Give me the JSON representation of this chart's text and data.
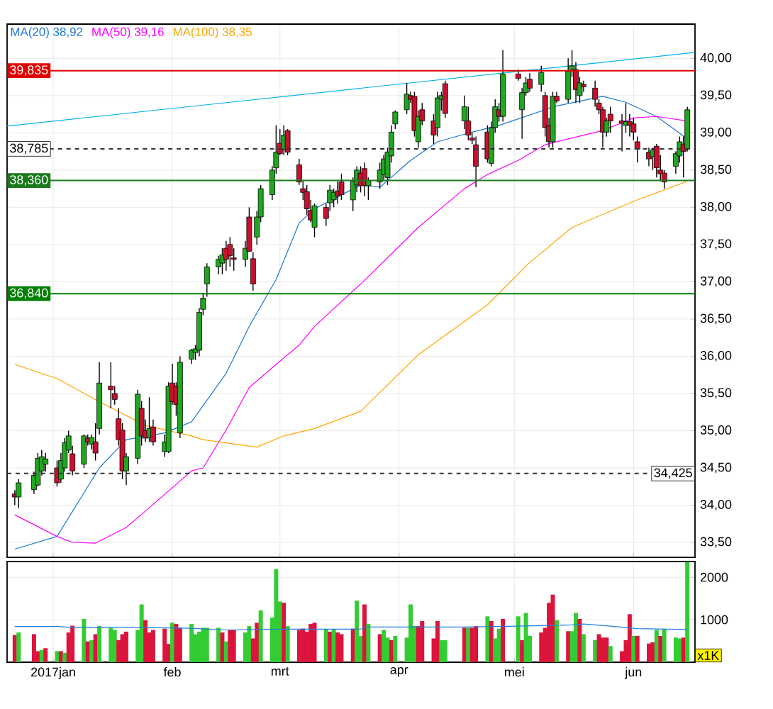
{
  "chart_data": [
    {
      "type": "candlestick",
      "x": [
        "2016-12-22",
        "2016-12-23",
        "2016-12-27",
        "2016-12-28",
        "2016-12-29",
        "2016-12-30",
        "2017-01-02",
        "2017-01-03",
        "2017-01-04",
        "2017-01-05",
        "2017-01-06",
        "2017-01-09",
        "2017-01-10",
        "2017-01-11",
        "2017-01-12",
        "2017-01-13",
        "2017-01-16",
        "2017-01-17",
        "2017-01-18",
        "2017-01-19",
        "2017-01-20",
        "2017-01-23",
        "2017-01-24",
        "2017-01-25",
        "2017-01-26",
        "2017-01-27",
        "2017-01-30",
        "2017-01-31",
        "2017-02-01",
        "2017-02-02",
        "2017-02-03",
        "2017-02-06",
        "2017-02-07",
        "2017-02-08",
        "2017-02-09",
        "2017-02-10",
        "2017-02-13",
        "2017-02-14",
        "2017-02-15",
        "2017-02-16",
        "2017-02-17",
        "2017-02-20",
        "2017-02-21",
        "2017-02-22",
        "2017-02-23",
        "2017-02-24",
        "2017-02-27",
        "2017-02-28",
        "2017-03-01",
        "2017-03-02",
        "2017-03-03",
        "2017-03-06",
        "2017-03-07",
        "2017-03-08",
        "2017-03-09",
        "2017-03-10",
        "2017-03-13",
        "2017-03-14",
        "2017-03-15",
        "2017-03-16",
        "2017-03-17",
        "2017-03-20",
        "2017-03-21",
        "2017-03-22",
        "2017-03-23",
        "2017-03-24",
        "2017-03-27",
        "2017-03-28",
        "2017-03-29",
        "2017-03-30",
        "2017-03-31",
        "2017-04-03",
        "2017-04-04",
        "2017-04-05",
        "2017-04-06",
        "2017-04-07",
        "2017-04-10",
        "2017-04-11",
        "2017-04-12",
        "2017-04-13",
        "2017-04-18",
        "2017-04-19",
        "2017-04-20",
        "2017-04-21",
        "2017-04-24",
        "2017-04-25",
        "2017-04-26",
        "2017-04-27",
        "2017-04-28",
        "2017-05-02",
        "2017-05-03",
        "2017-05-04",
        "2017-05-05",
        "2017-05-08",
        "2017-05-09",
        "2017-05-10",
        "2017-05-11",
        "2017-05-12",
        "2017-05-15",
        "2017-05-16",
        "2017-05-17",
        "2017-05-18",
        "2017-05-19",
        "2017-05-22",
        "2017-05-23",
        "2017-05-24",
        "2017-05-25",
        "2017-05-26",
        "2017-05-29",
        "2017-05-30",
        "2017-05-31",
        "2017-06-01",
        "2017-06-02",
        "2017-06-05",
        "2017-06-06",
        "2017-06-07",
        "2017-06-08",
        "2017-06-09",
        "2017-06-12",
        "2017-06-13",
        "2017-06-14",
        "2017-06-15"
      ],
      "ohlc": [
        [
          34.15,
          34.2,
          34.0,
          34.11
        ],
        [
          34.11,
          34.35,
          33.96,
          34.3
        ],
        [
          34.21,
          34.45,
          34.15,
          34.4
        ],
        [
          34.27,
          34.7,
          34.25,
          34.63
        ],
        [
          34.46,
          34.74,
          34.4,
          34.65
        ],
        [
          34.55,
          34.7,
          34.45,
          34.62
        ],
        [
          34.5,
          34.6,
          34.25,
          34.3
        ],
        [
          34.35,
          34.7,
          34.3,
          34.6
        ],
        [
          34.5,
          34.9,
          34.45,
          34.84
        ],
        [
          34.74,
          35.0,
          34.7,
          34.93
        ],
        [
          34.69,
          34.8,
          34.4,
          34.46
        ],
        [
          34.55,
          34.95,
          34.5,
          34.93
        ],
        [
          34.9,
          34.95,
          34.8,
          34.85
        ],
        [
          34.82,
          34.95,
          34.75,
          34.91
        ],
        [
          34.85,
          35.1,
          34.6,
          34.7
        ],
        [
          35.03,
          35.92,
          34.95,
          35.64
        ],
        [
          35.6,
          35.92,
          35.3,
          35.55
        ],
        [
          35.5,
          35.6,
          35.35,
          35.42
        ],
        [
          35.16,
          35.3,
          34.8,
          34.88
        ],
        [
          35.01,
          35.1,
          34.35,
          34.46
        ],
        [
          34.46,
          34.7,
          34.27,
          34.65
        ],
        [
          34.63,
          35.55,
          34.55,
          35.49
        ],
        [
          35.3,
          35.4,
          34.8,
          34.93
        ],
        [
          35.0,
          35.15,
          34.85,
          34.9
        ],
        [
          34.91,
          35.45,
          34.85,
          35.03
        ],
        [
          35.05,
          35.15,
          34.8,
          34.85
        ],
        [
          34.72,
          34.95,
          34.65,
          34.85
        ],
        [
          34.72,
          35.65,
          34.7,
          35.6
        ],
        [
          35.64,
          35.9,
          35.35,
          35.39
        ],
        [
          35.6,
          35.65,
          35.2,
          35.35
        ],
        [
          34.97,
          36.0,
          34.9,
          35.92
        ],
        [
          35.96,
          36.1,
          35.9,
          36.08
        ],
        [
          36.05,
          36.15,
          35.95,
          36.1
        ],
        [
          36.08,
          36.65,
          36.0,
          36.59
        ],
        [
          36.63,
          36.85,
          36.55,
          36.78
        ],
        [
          36.97,
          37.25,
          36.8,
          37.2
        ],
        [
          37.2,
          37.35,
          37.1,
          37.3
        ],
        [
          37.25,
          37.45,
          37.1,
          37.36
        ],
        [
          37.45,
          37.55,
          37.15,
          37.3
        ],
        [
          37.5,
          37.6,
          37.2,
          37.35
        ],
        [
          37.32,
          37.45,
          37.15,
          37.3
        ],
        [
          37.3,
          37.55,
          37.2,
          37.45
        ],
        [
          37.87,
          38.0,
          37.4,
          37.41
        ],
        [
          37.31,
          37.4,
          36.88,
          36.97
        ],
        [
          37.6,
          37.95,
          37.5,
          37.87
        ],
        [
          37.87,
          38.3,
          37.8,
          38.25
        ],
        [
          38.17,
          38.55,
          38.1,
          38.5
        ],
        [
          38.53,
          39.1,
          38.45,
          38.74
        ],
        [
          38.86,
          39.05,
          38.7,
          38.72
        ],
        [
          38.78,
          39.1,
          38.7,
          38.97
        ],
        [
          39.03,
          39.05,
          38.7,
          38.74
        ],
        [
          38.57,
          38.65,
          38.3,
          38.34
        ],
        [
          38.25,
          38.35,
          38.1,
          38.2
        ],
        [
          38.21,
          38.3,
          37.9,
          37.98
        ],
        [
          37.96,
          38.1,
          37.8,
          37.83
        ],
        [
          37.73,
          38.05,
          37.6,
          38.02
        ],
        [
          38.0,
          38.05,
          37.75,
          37.85
        ],
        [
          38.06,
          38.3,
          37.95,
          38.23
        ],
        [
          38.1,
          38.25,
          38.0,
          38.2
        ],
        [
          38.22,
          38.35,
          38.05,
          38.15
        ],
        [
          38.34,
          38.45,
          38.1,
          38.17
        ],
        [
          38.1,
          38.4,
          37.95,
          38.35
        ],
        [
          38.3,
          38.55,
          38.2,
          38.5
        ],
        [
          38.46,
          38.55,
          38.2,
          38.29
        ],
        [
          38.52,
          38.6,
          38.15,
          38.29
        ],
        [
          38.29,
          38.4,
          38.1,
          38.36
        ],
        [
          38.34,
          38.6,
          38.25,
          38.5
        ],
        [
          38.44,
          38.7,
          38.35,
          38.65
        ],
        [
          38.4,
          38.8,
          38.3,
          38.74
        ],
        [
          38.69,
          39.1,
          38.6,
          39.01
        ],
        [
          39.12,
          39.3,
          39.05,
          39.28
        ],
        [
          39.31,
          39.67,
          39.25,
          39.52
        ],
        [
          39.5,
          39.55,
          39.4,
          39.45
        ],
        [
          39.49,
          39.55,
          38.95,
          39.03
        ],
        [
          38.88,
          39.3,
          38.8,
          39.22
        ],
        [
          39.31,
          39.4,
          39.1,
          39.16
        ],
        [
          39.16,
          39.25,
          38.85,
          38.97
        ],
        [
          39.07,
          39.55,
          38.95,
          39.47
        ],
        [
          39.45,
          39.55,
          39.3,
          39.5
        ],
        [
          39.66,
          39.7,
          39.2,
          39.26
        ],
        [
          39.16,
          39.5,
          39.05,
          39.35
        ],
        [
          39.16,
          39.35,
          38.9,
          38.97
        ],
        [
          38.93,
          39.0,
          38.85,
          38.9
        ],
        [
          38.84,
          38.95,
          38.27,
          38.55
        ],
        [
          39.01,
          39.1,
          38.6,
          38.65
        ],
        [
          38.59,
          39.15,
          38.55,
          39.07
        ],
        [
          39.07,
          39.45,
          39.0,
          39.35
        ],
        [
          39.31,
          39.4,
          39.15,
          39.22
        ],
        [
          39.22,
          40.11,
          39.15,
          39.79
        ],
        [
          39.79,
          39.85,
          39.7,
          39.73
        ],
        [
          39.31,
          39.6,
          38.92,
          39.54
        ],
        [
          39.54,
          39.75,
          39.5,
          39.67
        ],
        [
          39.72,
          39.8,
          39.55,
          39.6
        ],
        [
          39.65,
          39.9,
          39.55,
          39.81
        ],
        [
          39.5,
          39.55,
          38.95,
          39.07
        ],
        [
          39.1,
          39.2,
          38.8,
          38.88
        ],
        [
          38.88,
          39.55,
          38.8,
          39.49
        ],
        [
          39.49,
          39.55,
          39.4,
          39.43
        ],
        [
          39.45,
          40.0,
          39.4,
          39.83
        ],
        [
          39.85,
          40.11,
          39.75,
          39.9
        ],
        [
          39.85,
          39.95,
          39.4,
          39.58
        ],
        [
          39.5,
          39.75,
          39.4,
          39.67
        ],
        [
          39.65,
          39.7,
          39.55,
          39.62
        ],
        [
          39.6,
          39.7,
          39.35,
          39.45
        ],
        [
          39.4,
          39.45,
          39.25,
          39.31
        ],
        [
          39.31,
          39.35,
          38.8,
          39.01
        ],
        [
          39.01,
          39.2,
          38.95,
          39.16
        ],
        [
          39.25,
          39.35,
          39.0,
          39.16
        ],
        [
          39.16,
          39.25,
          38.75,
          39.13
        ],
        [
          39.1,
          39.4,
          39.0,
          39.15
        ],
        [
          39.15,
          39.25,
          38.95,
          39.1
        ],
        [
          39.12,
          39.2,
          38.9,
          39.01
        ],
        [
          38.88,
          38.95,
          38.6,
          38.78
        ],
        [
          38.74,
          38.8,
          38.55,
          38.65
        ],
        [
          38.68,
          38.8,
          38.5,
          38.77
        ],
        [
          38.82,
          38.85,
          38.4,
          38.53
        ],
        [
          38.5,
          38.7,
          38.35,
          38.45
        ],
        [
          38.46,
          38.5,
          38.25,
          38.34
        ],
        [
          38.55,
          38.75,
          38.45,
          38.72
        ],
        [
          38.69,
          38.95,
          38.6,
          38.88
        ],
        [
          38.85,
          38.95,
          38.4,
          38.75
        ],
        [
          38.78,
          39.35,
          38.75,
          39.31
        ]
      ],
      "colors": [
        "#c8102e",
        "#1fa81f",
        "#1fa81f",
        "#1fa81f",
        "#1fa81f",
        "#1fa81f",
        "#c8102e",
        "#1fa81f",
        "#1fa81f",
        "#1fa81f",
        "#c8102e",
        "#1fa81f",
        "#c8102e",
        "#1fa81f",
        "#c8102e",
        "#1fa81f",
        "#c8102e",
        "#c8102e",
        "#c8102e",
        "#c8102e",
        "#1fa81f",
        "#1fa81f",
        "#c8102e",
        "#c8102e",
        "#1fa81f",
        "#c8102e",
        "#1fa81f",
        "#1fa81f",
        "#c8102e",
        "#c8102e",
        "#1fa81f",
        "#1fa81f",
        "#1fa81f",
        "#1fa81f",
        "#1fa81f",
        "#1fa81f",
        "#1fa81f",
        "#1fa81f",
        "#c8102e",
        "#c8102e",
        "#c8102e",
        "#1fa81f",
        "#c8102e",
        "#c8102e",
        "#1fa81f",
        "#1fa81f",
        "#1fa81f",
        "#1fa81f",
        "#c8102e",
        "#1fa81f",
        "#c8102e",
        "#c8102e",
        "#c8102e",
        "#c8102e",
        "#c8102e",
        "#1fa81f",
        "#c8102e",
        "#1fa81f",
        "#1fa81f",
        "#c8102e",
        "#c8102e",
        "#1fa81f",
        "#1fa81f",
        "#c8102e",
        "#c8102e",
        "#1fa81f",
        "#1fa81f",
        "#1fa81f",
        "#1fa81f",
        "#1fa81f",
        "#1fa81f",
        "#1fa81f",
        "#c8102e",
        "#c8102e",
        "#1fa81f",
        "#c8102e",
        "#c8102e",
        "#1fa81f",
        "#1fa81f",
        "#c8102e",
        "#1fa81f",
        "#c8102e",
        "#c8102e",
        "#c8102e",
        "#c8102e",
        "#1fa81f",
        "#1fa81f",
        "#c8102e",
        "#1fa81f",
        "#c8102e",
        "#1fa81f",
        "#1fa81f",
        "#c8102e",
        "#1fa81f",
        "#c8102e",
        "#c8102e",
        "#1fa81f",
        "#c8102e",
        "#1fa81f",
        "#1fa81f",
        "#c8102e",
        "#1fa81f",
        "#c8102e",
        "#c8102e",
        "#c8102e",
        "#c8102e",
        "#1fa81f",
        "#c8102e",
        "#c8102e",
        "#1fa81f",
        "#c8102e",
        "#c8102e",
        "#c8102e",
        "#c8102e",
        "#1fa81f",
        "#c8102e",
        "#c8102e",
        "#c8102e",
        "#1fa81f",
        "#1fa81f",
        "#c8102e",
        "#1fa81f"
      ],
      "series": [
        {
          "name": "MA(20) 38,92",
          "type": "line",
          "color": "#1a78d4",
          "x": [
            "2016-12-22",
            "2017-01-02",
            "2017-01-13",
            "2017-01-20",
            "2017-01-30",
            "2017-02-06",
            "2017-02-15",
            "2017-02-21",
            "2017-02-28",
            "2017-03-06",
            "2017-03-10",
            "2017-03-22",
            "2017-03-27",
            "2017-04-04",
            "2017-04-11",
            "2017-04-20",
            "2017-04-27",
            "2017-05-09",
            "2017-05-11",
            "2017-05-24",
            "2017-05-30",
            "2017-06-07",
            "2017-06-15"
          ],
          "values": [
            33.41,
            33.58,
            34.5,
            34.88,
            34.97,
            35.12,
            35.77,
            36.4,
            37.03,
            37.79,
            37.98,
            38.3,
            38.27,
            38.63,
            38.88,
            39.01,
            39.1,
            39.31,
            39.35,
            39.49,
            39.41,
            39.22,
            38.92
          ]
        },
        {
          "name": "MA(50) 39,16",
          "type": "line",
          "color": "#ff00ff",
          "x": [
            "2016-12-22",
            "2017-01-02",
            "2017-01-06",
            "2017-01-12",
            "2017-01-20",
            "2017-01-25",
            "2017-02-06",
            "2017-02-09",
            "2017-02-15",
            "2017-02-21",
            "2017-02-28",
            "2017-03-06",
            "2017-03-10",
            "2017-03-22",
            "2017-03-27",
            "2017-04-06",
            "2017-04-18",
            "2017-04-24",
            "2017-05-02",
            "2017-05-09",
            "2017-05-12",
            "2017-05-24",
            "2017-06-01",
            "2017-06-07",
            "2017-06-15"
          ],
          "values": [
            33.87,
            33.58,
            33.5,
            33.49,
            33.7,
            33.92,
            34.46,
            34.5,
            35.01,
            35.58,
            35.89,
            36.15,
            36.4,
            36.97,
            37.22,
            37.73,
            38.25,
            38.44,
            38.63,
            38.84,
            38.88,
            39.03,
            39.2,
            39.22,
            39.16
          ]
        },
        {
          "name": "MA(100) 38,35",
          "type": "line",
          "color": "#ffa500",
          "x": [
            "2016-12-22",
            "2017-01-02",
            "2017-01-13",
            "2017-01-25",
            "2017-02-06",
            "2017-02-09",
            "2017-02-23",
            "2017-03-02",
            "2017-03-10",
            "2017-03-22",
            "2017-04-06",
            "2017-04-24",
            "2017-05-05",
            "2017-05-16",
            "2017-06-01",
            "2017-06-15"
          ],
          "values": [
            35.89,
            35.7,
            35.39,
            35.07,
            34.93,
            34.88,
            34.78,
            34.93,
            35.03,
            35.26,
            36.02,
            36.69,
            37.26,
            37.73,
            38.08,
            38.35
          ]
        },
        {
          "type": "line",
          "color": "#00b0f0",
          "x": [
            "2016-12-20",
            "2017-06-17"
          ],
          "values": [
            39.09,
            40.08
          ]
        }
      ],
      "xlim": [
        "2016-12-20",
        "2017-06-17"
      ],
      "xticks": [
        {
          "value": "2017-01-01",
          "label": null
        },
        {
          "value": "2017-02-01",
          "label": null
        },
        {
          "value": "2017-03-01",
          "label": null
        },
        {
          "value": "2017-04-01",
          "label": null
        },
        {
          "value": "2017-05-01",
          "label": null
        },
        {
          "value": "2017-06-01",
          "label": null
        }
      ],
      "ylim": [
        33.3,
        40.46
      ],
      "yticks": [
        {
          "value": 33.5,
          "label": "33,50"
        },
        {
          "value": 34,
          "label": "34,00"
        },
        {
          "value": 34.5,
          "label": "34,50"
        },
        {
          "value": 35,
          "label": "35,00"
        },
        {
          "value": 35.5,
          "label": "35,50"
        },
        {
          "value": 36,
          "label": "36,00"
        },
        {
          "value": 36.5,
          "label": "36,50"
        },
        {
          "value": 37,
          "label": "37,00"
        },
        {
          "value": 37.5,
          "label": "37,50"
        },
        {
          "value": 38,
          "label": "38,00"
        },
        {
          "value": 38.5,
          "label": "38,50"
        },
        {
          "value": 39,
          "label": "39,00"
        },
        {
          "value": 39.5,
          "label": "39,50"
        },
        {
          "value": 40,
          "label": "40,00"
        }
      ],
      "ref_lines": [
        {
          "axis": "y",
          "value": 39.835,
          "label": "39,835",
          "color": "#e00000"
        },
        {
          "axis": "y",
          "value": 38.785,
          "label": "38,785",
          "color": "#333333",
          "line_style": "dashed"
        },
        {
          "axis": "y",
          "value": 38.36,
          "label": "38,360",
          "color": "#1a7a1a"
        },
        {
          "axis": "y",
          "value": 36.84,
          "label": "36,840",
          "color": "#008000"
        },
        {
          "axis": "y",
          "value": 34.425,
          "label": "34,425",
          "color": "#333333",
          "line_style": "dashed"
        }
      ],
      "grid": true,
      "legend": "top left",
      "tick_labels": "y"
    },
    {
      "type": "bar",
      "x": [
        "2016-12-22",
        "2016-12-23",
        "2016-12-27",
        "2016-12-28",
        "2016-12-29",
        "2016-12-30",
        "2017-01-02",
        "2017-01-03",
        "2017-01-04",
        "2017-01-05",
        "2017-01-06",
        "2017-01-09",
        "2017-01-10",
        "2017-01-11",
        "2017-01-12",
        "2017-01-13",
        "2017-01-16",
        "2017-01-17",
        "2017-01-18",
        "2017-01-19",
        "2017-01-20",
        "2017-01-23",
        "2017-01-24",
        "2017-01-25",
        "2017-01-26",
        "2017-01-27",
        "2017-01-30",
        "2017-01-31",
        "2017-02-01",
        "2017-02-02",
        "2017-02-03",
        "2017-02-06",
        "2017-02-07",
        "2017-02-08",
        "2017-02-09",
        "2017-02-10",
        "2017-02-13",
        "2017-02-14",
        "2017-02-15",
        "2017-02-16",
        "2017-02-17",
        "2017-02-20",
        "2017-02-21",
        "2017-02-22",
        "2017-02-23",
        "2017-02-24",
        "2017-02-27",
        "2017-02-28",
        "2017-03-01",
        "2017-03-02",
        "2017-03-03",
        "2017-03-06",
        "2017-03-07",
        "2017-03-08",
        "2017-03-09",
        "2017-03-10",
        "2017-03-13",
        "2017-03-14",
        "2017-03-15",
        "2017-03-16",
        "2017-03-17",
        "2017-03-20",
        "2017-03-21",
        "2017-03-22",
        "2017-03-23",
        "2017-03-24",
        "2017-03-27",
        "2017-03-28",
        "2017-03-29",
        "2017-03-30",
        "2017-03-31",
        "2017-04-03",
        "2017-04-04",
        "2017-04-05",
        "2017-04-06",
        "2017-04-07",
        "2017-04-10",
        "2017-04-11",
        "2017-04-12",
        "2017-04-13",
        "2017-04-18",
        "2017-04-19",
        "2017-04-20",
        "2017-04-21",
        "2017-04-24",
        "2017-04-25",
        "2017-04-26",
        "2017-04-27",
        "2017-04-28",
        "2017-05-02",
        "2017-05-03",
        "2017-05-04",
        "2017-05-05",
        "2017-05-08",
        "2017-05-09",
        "2017-05-10",
        "2017-05-11",
        "2017-05-12",
        "2017-05-15",
        "2017-05-16",
        "2017-05-17",
        "2017-05-18",
        "2017-05-19",
        "2017-05-22",
        "2017-05-23",
        "2017-05-24",
        "2017-05-25",
        "2017-05-26",
        "2017-05-29",
        "2017-05-30",
        "2017-05-31",
        "2017-06-01",
        "2017-06-02",
        "2017-06-05",
        "2017-06-06",
        "2017-06-07",
        "2017-06-08",
        "2017-06-09",
        "2017-06-12",
        "2017-06-13",
        "2017-06-14",
        "2017-06-15"
      ],
      "series": [
        {
          "type": "bar",
          "values": [
            640,
            700,
            660,
            260,
            290,
            330,
            260,
            260,
            220,
            700,
            860,
            1020,
            490,
            520,
            660,
            850,
            810,
            760,
            520,
            660,
            720,
            760,
            1360,
            990,
            700,
            760,
            790,
            430,
            930,
            900,
            810,
            900,
            660,
            720,
            810,
            810,
            810,
            700,
            490,
            760,
            760,
            700,
            850,
            560,
            930,
            1220,
            1050,
            2190,
            1430,
            1400,
            850,
            760,
            790,
            720,
            900,
            930,
            780,
            720,
            780,
            700,
            660,
            790,
            1450,
            620,
            1360,
            900,
            660,
            760,
            580,
            520,
            620,
            580,
            1360,
            850,
            850,
            970,
            560,
            970,
            520,
            520,
            810,
            810,
            810,
            850,
            1080,
            970,
            560,
            790,
            1020,
            1080,
            520,
            1160,
            620,
            700,
            810,
            1400,
            1590,
            990,
            730,
            730,
            1160,
            1020,
            660,
            520,
            660,
            580,
            580,
            380,
            260,
            520,
            1130,
            620,
            620,
            440,
            470,
            760,
            620,
            780,
            580,
            560,
            580,
            2360
          ],
          "colors": [
            "#dc143c",
            "#33cc33",
            "#dc143c",
            "#dc143c",
            "#33cc33",
            "#dc143c",
            "#33cc33",
            "#dc143c",
            "#33cc33",
            "#dc143c",
            "#dc143c",
            "#33cc33",
            "#dc143c",
            "#33cc33",
            "#dc143c",
            "#33cc33",
            "#33cc33",
            "#33cc33",
            "#dc143c",
            "#dc143c",
            "#dc143c",
            "#33cc33",
            "#33cc33",
            "#dc143c",
            "#dc143c",
            "#dc143c",
            "#dc143c",
            "#dc143c",
            "#33cc33",
            "#dc143c",
            "#dc143c",
            "#33cc33",
            "#33cc33",
            "#33cc33",
            "#33cc33",
            "#33cc33",
            "#33cc33",
            "#dc143c",
            "#33cc33",
            "#dc143c",
            "#dc143c",
            "#33cc33",
            "#33cc33",
            "#dc143c",
            "#dc143c",
            "#33cc33",
            "#33cc33",
            "#33cc33",
            "#33cc33",
            "#dc143c",
            "#33cc33",
            "#dc143c",
            "#dc143c",
            "#dc143c",
            "#dc143c",
            "#dc143c",
            "#33cc33",
            "#dc143c",
            "#33cc33",
            "#dc143c",
            "#dc143c",
            "#dc143c",
            "#33cc33",
            "#33cc33",
            "#dc143c",
            "#33cc33",
            "#dc143c",
            "#33cc33",
            "#33cc33",
            "#dc143c",
            "#33cc33",
            "#33cc33",
            "#33cc33",
            "#33cc33",
            "#dc143c",
            "#dc143c",
            "#dc143c",
            "#dc143c",
            "#33cc33",
            "#33cc33",
            "#dc143c",
            "#33cc33",
            "#dc143c",
            "#dc143c",
            "#33cc33",
            "#dc143c",
            "#33cc33",
            "#33cc33",
            "#dc143c",
            "#33cc33",
            "#dc143c",
            "#33cc33",
            "#33cc33",
            "#dc143c",
            "#dc143c",
            "#dc143c",
            "#dc143c",
            "#33cc33",
            "#dc143c",
            "#33cc33",
            "#33cc33",
            "#dc143c",
            "#33cc33",
            "#33cc33",
            "#dc143c",
            "#dc143c",
            "#dc143c",
            "#33cc33",
            "#dc143c",
            "#dc143c",
            "#dc143c",
            "#33cc33",
            "#dc143c",
            "#dc143c",
            "#dc143c",
            "#33cc33",
            "#dc143c",
            "#33cc33",
            "#33cc33",
            "#33cc33",
            "#dc143c",
            "#33cc33"
          ]
        },
        {
          "type": "line",
          "color": "#1e7fd8",
          "x": [
            "2016-12-22",
            "2017-01-02",
            "2017-01-06",
            "2017-01-20",
            "2017-02-06",
            "2017-02-15",
            "2017-03-01",
            "2017-03-22",
            "2017-03-24",
            "2017-04-18",
            "2017-05-02",
            "2017-05-16",
            "2017-05-19",
            "2017-05-26",
            "2017-06-02",
            "2017-06-15"
          ],
          "values": [
            840,
            840,
            820,
            820,
            800,
            760,
            780,
            780,
            830,
            830,
            850,
            880,
            900,
            850,
            790,
            770
          ]
        }
      ],
      "xlim": [
        "2016-12-20",
        "2017-06-17"
      ],
      "xticks": [
        {
          "value": "2017-01-01",
          "label": "2017jan"
        },
        {
          "value": "2017-02-01",
          "label": "feb"
        },
        {
          "value": "2017-03-01",
          "label": "mrt"
        },
        {
          "value": "2017-04-01",
          "label": "apr"
        },
        {
          "value": "2017-05-01",
          "label": "mei"
        },
        {
          "value": "2017-06-01",
          "label": "jun"
        }
      ],
      "ylim": [
        0,
        2370
      ],
      "yticks": [
        1000,
        2000
      ],
      "ylabel": "x1K",
      "grid": true
    }
  ]
}
